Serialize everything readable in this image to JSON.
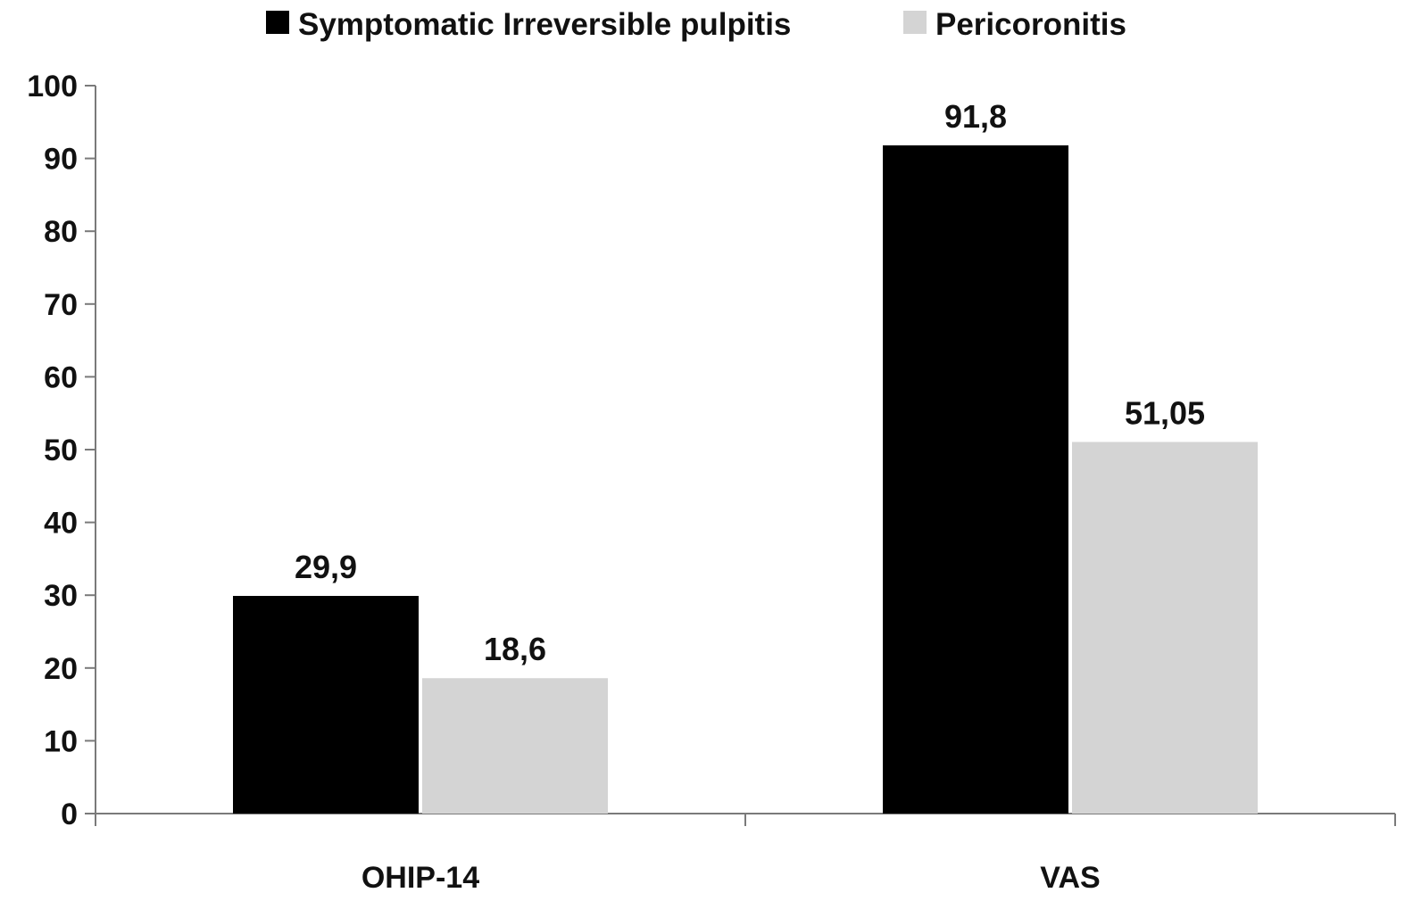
{
  "chart_data": {
    "type": "bar",
    "categories": [
      "OHIP-14",
      "VAS"
    ],
    "series": [
      {
        "name": "Symptomatic Irreversible pulpitis",
        "values": [
          29.9,
          91.8
        ],
        "labels": [
          "29,9",
          "91,8"
        ],
        "color": "#000000"
      },
      {
        "name": "Pericoronitis",
        "values": [
          18.6,
          51.05
        ],
        "labels": [
          "18,6",
          "51,05"
        ],
        "color": "#d4d4d4"
      }
    ],
    "yticks": [
      "0",
      "10",
      "20",
      "30",
      "40",
      "50",
      "60",
      "70",
      "80",
      "90",
      "100"
    ],
    "ylim": [
      0,
      100
    ],
    "grid": false,
    "legend_position": "top-center",
    "title": "",
    "xlabel": "",
    "ylabel": ""
  }
}
